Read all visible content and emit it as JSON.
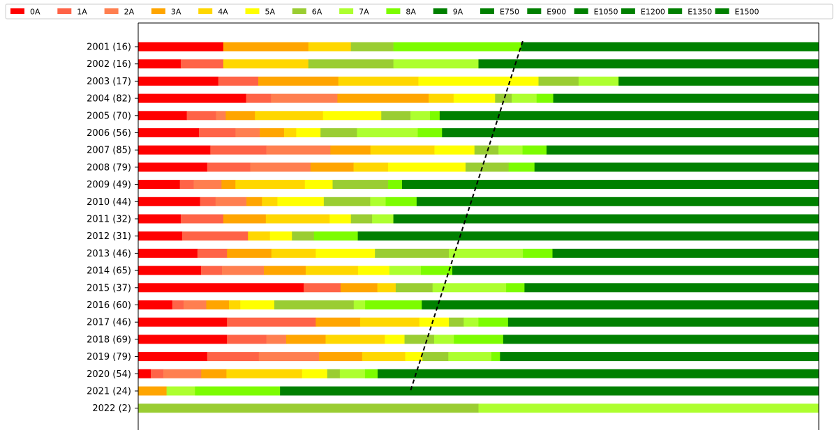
{
  "chart_data": {
    "type": "bar",
    "orientation": "horizontal",
    "stacked": true,
    "normalized": true,
    "categories": [
      "2001 (16)",
      "2002 (16)",
      "2003 (17)",
      "2004 (82)",
      "2005 (70)",
      "2006 (56)",
      "2007 (85)",
      "2008 (79)",
      "2009 (49)",
      "2010 (44)",
      "2011 (32)",
      "2012 (31)",
      "2013 (46)",
      "2014 (65)",
      "2015 (37)",
      "2016 (60)",
      "2017 (46)",
      "2018 (69)",
      "2019 (79)",
      "2020 (54)",
      "2021 (24)",
      "2022 (2)"
    ],
    "series": [
      {
        "name": "0A",
        "color": "#ff0000",
        "values": [
          0.125,
          0.0625,
          0.1176,
          0.1585,
          0.0714,
          0.0893,
          0.1059,
          0.1013,
          0.0612,
          0.0909,
          0.0625,
          0.0645,
          0.087,
          0.0923,
          0.2432,
          0.05,
          0.1304,
          0.1304,
          0.1013,
          0.0185,
          0,
          0
        ]
      },
      {
        "name": "1A",
        "color": "#ff6347",
        "values": [
          0,
          0.0625,
          0.0588,
          0.0366,
          0.0429,
          0.0536,
          0.0824,
          0.0633,
          0.0204,
          0.0227,
          0.0625,
          0.0968,
          0.0435,
          0.0308,
          0.0541,
          0.0167,
          0.1304,
          0.058,
          0.0759,
          0.0185,
          0,
          0
        ]
      },
      {
        "name": "2A",
        "color": "#ff7f50",
        "values": [
          0,
          0,
          0,
          0.0976,
          0.0143,
          0.0357,
          0.0941,
          0.0886,
          0.0408,
          0.0455,
          0,
          0,
          0,
          0.0615,
          0,
          0.0333,
          0,
          0.029,
          0.0886,
          0.0556,
          0,
          0
        ]
      },
      {
        "name": "3A",
        "color": "#ffa500",
        "values": [
          0.125,
          0,
          0.1176,
          0.1341,
          0.0429,
          0.0357,
          0.0588,
          0.0633,
          0.0204,
          0.0227,
          0.0625,
          0,
          0.0652,
          0.0615,
          0.0541,
          0.0333,
          0.0652,
          0.058,
          0.0633,
          0.037,
          0.0417,
          0
        ]
      },
      {
        "name": "4A",
        "color": "#ffd700",
        "values": [
          0.0625,
          0.125,
          0.1176,
          0.0366,
          0.1,
          0.0179,
          0.0941,
          0.0506,
          0.102,
          0.0227,
          0.0938,
          0.0323,
          0.0652,
          0.0769,
          0.027,
          0.0167,
          0.087,
          0.087,
          0.0633,
          0.1111,
          0,
          0
        ]
      },
      {
        "name": "5A",
        "color": "#ffff00",
        "values": [
          0,
          0,
          0.1765,
          0.061,
          0.0857,
          0.0357,
          0.0588,
          0.1139,
          0.0408,
          0.0682,
          0.0312,
          0.0323,
          0.087,
          0.0462,
          0,
          0.05,
          0.0435,
          0.029,
          0.0253,
          0.037,
          0,
          0
        ]
      },
      {
        "name": "6A",
        "color": "#9acd32",
        "values": [
          0.0625,
          0.125,
          0.0588,
          0.0244,
          0.0429,
          0.0536,
          0.0353,
          0.0633,
          0.0816,
          0.0682,
          0.0312,
          0.0323,
          0.1087,
          0,
          0.0541,
          0.1167,
          0.0217,
          0.0435,
          0.038,
          0.0185,
          0,
          0.5
        ]
      },
      {
        "name": "7A",
        "color": "#adff2f",
        "values": [
          0,
          0.125,
          0.0588,
          0.0366,
          0.0286,
          0.0893,
          0.0353,
          0,
          0,
          0.0227,
          0.0312,
          0,
          0.1087,
          0.0462,
          0.1081,
          0.0167,
          0.0217,
          0.029,
          0.0633,
          0.037,
          0.0417,
          0.5
        ]
      },
      {
        "name": "8A",
        "color": "#7cfc00",
        "values": [
          0.1875,
          0,
          0,
          0.0244,
          0.0143,
          0.0357,
          0.0353,
          0.038,
          0.0204,
          0.0455,
          0,
          0.0645,
          0.0435,
          0.0462,
          0.027,
          0.0833,
          0.0435,
          0.0725,
          0.0127,
          0.0185,
          0.125,
          0
        ]
      },
      {
        "name": "9A",
        "color": "#008000",
        "values": [
          0.4375,
          0.5,
          0.2941,
          0.3902,
          0.5571,
          0.5536,
          0.4,
          0.4177,
          0.6122,
          0.5909,
          0.625,
          0.6774,
          0.3913,
          0.5385,
          0.4324,
          0.5833,
          0.4565,
          0.4638,
          0.4684,
          0.6481,
          0.7917,
          0
        ]
      },
      {
        "name": "E750",
        "color": "#008000",
        "values": [
          0,
          0,
          0,
          0,
          0,
          0,
          0,
          0,
          0,
          0,
          0,
          0,
          0,
          0,
          0,
          0,
          0,
          0,
          0,
          0,
          0,
          0
        ]
      },
      {
        "name": "E900",
        "color": "#008000",
        "values": [
          0,
          0,
          0,
          0,
          0,
          0,
          0,
          0,
          0,
          0,
          0,
          0,
          0,
          0,
          0,
          0,
          0,
          0,
          0,
          0,
          0,
          0
        ]
      },
      {
        "name": "E1050",
        "color": "#008000",
        "values": [
          0,
          0,
          0,
          0,
          0,
          0,
          0,
          0,
          0,
          0,
          0,
          0,
          0,
          0,
          0,
          0,
          0,
          0,
          0,
          0,
          0,
          0
        ]
      },
      {
        "name": "E1200",
        "color": "#008000",
        "values": [
          0,
          0,
          0,
          0,
          0,
          0,
          0,
          0,
          0,
          0,
          0,
          0,
          0,
          0,
          0,
          0,
          0,
          0,
          0,
          0,
          0,
          0
        ]
      },
      {
        "name": "E1350",
        "color": "#008000",
        "values": [
          0,
          0,
          0,
          0,
          0,
          0,
          0,
          0,
          0,
          0,
          0,
          0,
          0,
          0,
          0,
          0,
          0,
          0,
          0,
          0,
          0,
          0
        ]
      },
      {
        "name": "E1500",
        "color": "#008000",
        "values": [
          0,
          0,
          0,
          0,
          0,
          0,
          0,
          0,
          0,
          0,
          0,
          0,
          0,
          0,
          0,
          0,
          0,
          0,
          0,
          0,
          0,
          0
        ]
      }
    ],
    "trend_line": {
      "style": "dashed",
      "color": "#000000",
      "from": {
        "category": "2001 (16)",
        "x": 0.565
      },
      "to": {
        "category": "2021 (24)",
        "x": 0.4
      }
    },
    "xlim": [
      0,
      1
    ],
    "legend": "top",
    "grid": false,
    "title": "",
    "xlabel": "",
    "ylabel": ""
  }
}
